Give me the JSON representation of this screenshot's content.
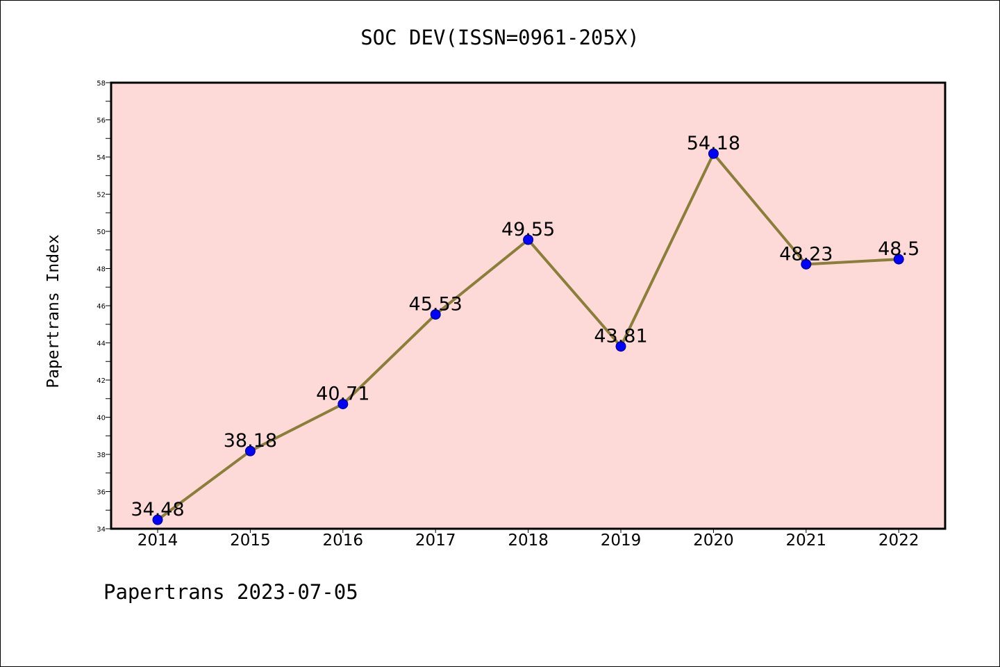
{
  "title": "SOC DEV(ISSN=0961-205X)",
  "footer": "Papertrans 2023-07-05",
  "chart_data": {
    "type": "line",
    "title": "SOC DEV(ISSN=0961-205X)",
    "xlabel": "",
    "ylabel": "Papertrans Index",
    "categories": [
      "2014",
      "2015",
      "2016",
      "2017",
      "2018",
      "2019",
      "2020",
      "2021",
      "2022"
    ],
    "series": [
      {
        "values": [
          34.48,
          38.18,
          40.71,
          45.53,
          49.55,
          43.81,
          54.18,
          48.23,
          48.5
        ],
        "labels": [
          "34.48",
          "38.18",
          "40.71",
          "45.53",
          "49.55",
          "43.81",
          "54.18",
          "48.23",
          "48.5"
        ]
      }
    ],
    "ylim": [
      34,
      58
    ],
    "yticks": [
      34,
      36,
      38,
      40,
      42,
      44,
      46,
      48,
      50,
      52,
      54,
      56,
      58
    ],
    "yticks_labels": [
      "34",
      "36",
      "38",
      "40",
      "42",
      "44",
      "46",
      "48",
      "50",
      "52",
      "54",
      "56",
      "58"
    ],
    "grid": false,
    "legend": "none",
    "colors": {
      "plot_background": "#fddad7",
      "line": "#8b7d3a",
      "marker": "#0000ff",
      "axes": "#000000"
    }
  }
}
